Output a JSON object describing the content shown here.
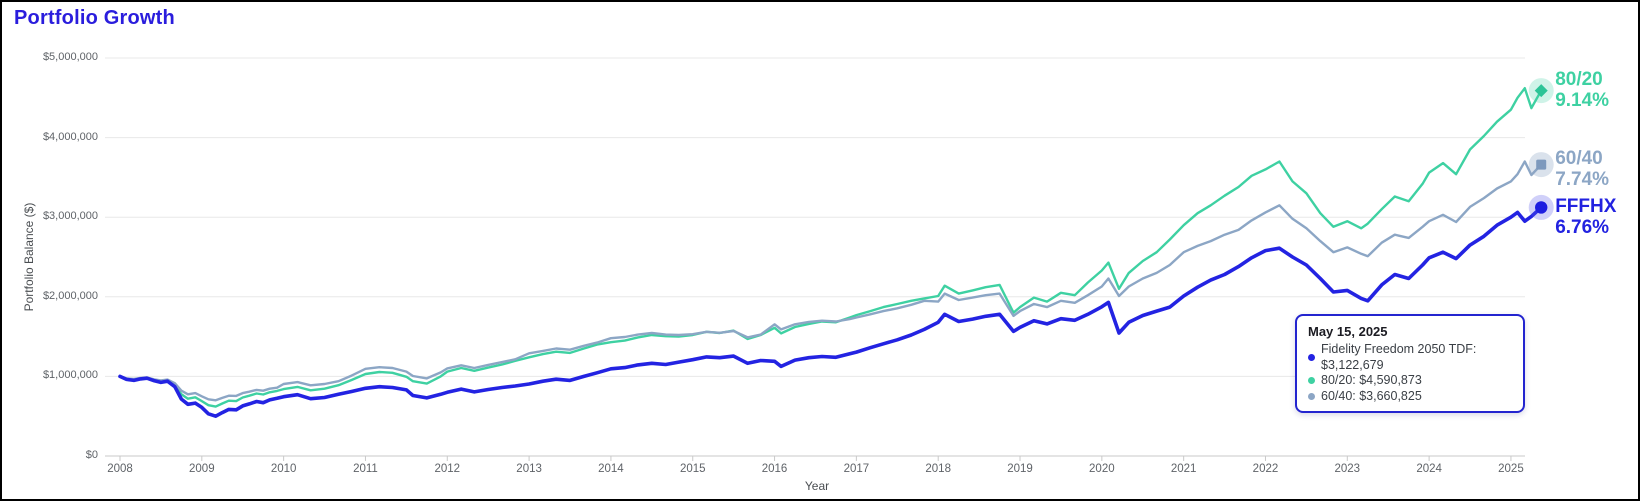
{
  "chart_data": {
    "type": "line",
    "title": "Portfolio Growth",
    "xlabel": "Year",
    "ylabel": "Portfolio Balance ($)",
    "grid": "horizontal",
    "legend_position": "right-end-labels",
    "ylim_dollars": [
      0,
      5000000
    ],
    "xlim_years": [
      2008,
      2025.37
    ],
    "x_ticks": [
      2008,
      2009,
      2010,
      2011,
      2012,
      2013,
      2014,
      2015,
      2016,
      2017,
      2018,
      2019,
      2020,
      2021,
      2022,
      2023,
      2024,
      2025
    ],
    "y_ticks": [
      {
        "value_millions": 0,
        "label": "$0"
      },
      {
        "value_millions": 1,
        "label": "$1,000,000"
      },
      {
        "value_millions": 2,
        "label": "$2,000,000"
      },
      {
        "value_millions": 3,
        "label": "$3,000,000"
      },
      {
        "value_millions": 4,
        "label": "$4,000,000"
      },
      {
        "value_millions": 5,
        "label": "$5,000,000"
      }
    ],
    "x": [
      2008.0,
      2008.08,
      2008.17,
      2008.25,
      2008.33,
      2008.42,
      2008.5,
      2008.58,
      2008.67,
      2008.75,
      2008.83,
      2008.92,
      2009.0,
      2009.08,
      2009.17,
      2009.25,
      2009.33,
      2009.42,
      2009.5,
      2009.58,
      2009.67,
      2009.75,
      2009.83,
      2009.92,
      2010.0,
      2010.17,
      2010.33,
      2010.5,
      2010.67,
      2010.83,
      2011.0,
      2011.17,
      2011.33,
      2011.5,
      2011.58,
      2011.75,
      2011.92,
      2012.0,
      2012.17,
      2012.33,
      2012.5,
      2012.67,
      2012.83,
      2013.0,
      2013.17,
      2013.33,
      2013.5,
      2013.67,
      2013.83,
      2014.0,
      2014.17,
      2014.33,
      2014.5,
      2014.67,
      2014.83,
      2015.0,
      2015.17,
      2015.33,
      2015.5,
      2015.67,
      2015.83,
      2016.0,
      2016.08,
      2016.25,
      2016.42,
      2016.58,
      2016.75,
      2016.92,
      2017.0,
      2017.17,
      2017.33,
      2017.5,
      2017.67,
      2017.83,
      2018.0,
      2018.08,
      2018.25,
      2018.42,
      2018.58,
      2018.75,
      2018.92,
      2019.0,
      2019.17,
      2019.33,
      2019.5,
      2019.67,
      2019.83,
      2020.0,
      2020.08,
      2020.21,
      2020.33,
      2020.5,
      2020.67,
      2020.83,
      2021.0,
      2021.17,
      2021.33,
      2021.5,
      2021.67,
      2021.83,
      2022.0,
      2022.17,
      2022.33,
      2022.5,
      2022.67,
      2022.83,
      2023.0,
      2023.17,
      2023.25,
      2023.42,
      2023.58,
      2023.75,
      2023.92,
      2024.0,
      2024.17,
      2024.33,
      2024.5,
      2024.67,
      2024.83,
      2025.0,
      2025.08,
      2025.17,
      2025.25,
      2025.37
    ],
    "series": [
      {
        "id": "p8020",
        "label": "80/20",
        "cagr_label": "9.14%",
        "end_value": "$4,590,873",
        "color": "#3ed1a2",
        "marker": "diamond",
        "marker_color": "#2cc497",
        "halo_color": "rgba(62,209,162,0.25)",
        "stroke_width": 2.4,
        "label_offset_y": 0,
        "values_millions": [
          1.0,
          0.968,
          0.958,
          0.974,
          0.982,
          0.952,
          0.938,
          0.95,
          0.895,
          0.775,
          0.72,
          0.738,
          0.69,
          0.638,
          0.62,
          0.66,
          0.695,
          0.69,
          0.735,
          0.758,
          0.785,
          0.772,
          0.8,
          0.818,
          0.84,
          0.868,
          0.825,
          0.845,
          0.89,
          0.955,
          1.03,
          1.055,
          1.045,
          0.995,
          0.94,
          0.91,
          1.0,
          1.06,
          1.105,
          1.07,
          1.11,
          1.15,
          1.195,
          1.24,
          1.28,
          1.31,
          1.295,
          1.35,
          1.4,
          1.43,
          1.45,
          1.49,
          1.52,
          1.505,
          1.5,
          1.52,
          1.56,
          1.545,
          1.575,
          1.47,
          1.52,
          1.61,
          1.54,
          1.62,
          1.66,
          1.69,
          1.68,
          1.74,
          1.77,
          1.82,
          1.87,
          1.91,
          1.95,
          1.98,
          2.01,
          2.14,
          2.04,
          2.08,
          2.12,
          2.15,
          1.8,
          1.87,
          1.99,
          1.94,
          2.05,
          2.02,
          2.18,
          2.33,
          2.43,
          2.1,
          2.3,
          2.45,
          2.56,
          2.72,
          2.9,
          3.05,
          3.15,
          3.27,
          3.38,
          3.52,
          3.6,
          3.7,
          3.45,
          3.3,
          3.05,
          2.88,
          2.95,
          2.86,
          2.92,
          3.1,
          3.26,
          3.2,
          3.42,
          3.56,
          3.68,
          3.54,
          3.85,
          4.02,
          4.2,
          4.35,
          4.5,
          4.62,
          4.37,
          4.5909
        ]
      },
      {
        "id": "p6040",
        "label": "60/40",
        "cagr_label": "7.74%",
        "end_value": "$3,660,825",
        "color": "#8ca6c5",
        "marker": "square",
        "marker_color": "#7d99bd",
        "halo_color": "rgba(140,166,197,0.32)",
        "stroke_width": 2.4,
        "label_offset_y": 5,
        "values_millions": [
          1.0,
          0.975,
          0.968,
          0.98,
          0.986,
          0.962,
          0.95,
          0.96,
          0.915,
          0.82,
          0.775,
          0.79,
          0.75,
          0.712,
          0.7,
          0.73,
          0.758,
          0.755,
          0.79,
          0.808,
          0.83,
          0.82,
          0.845,
          0.858,
          0.905,
          0.928,
          0.888,
          0.905,
          0.94,
          1.01,
          1.095,
          1.115,
          1.105,
          1.06,
          1.005,
          0.975,
          1.05,
          1.1,
          1.14,
          1.105,
          1.145,
          1.18,
          1.215,
          1.29,
          1.32,
          1.35,
          1.335,
          1.385,
          1.425,
          1.48,
          1.495,
          1.525,
          1.545,
          1.525,
          1.52,
          1.53,
          1.56,
          1.548,
          1.57,
          1.49,
          1.525,
          1.655,
          1.59,
          1.655,
          1.685,
          1.7,
          1.69,
          1.72,
          1.74,
          1.78,
          1.82,
          1.855,
          1.9,
          1.95,
          1.94,
          2.04,
          1.96,
          1.99,
          2.02,
          2.04,
          1.76,
          1.82,
          1.91,
          1.87,
          1.95,
          1.925,
          2.02,
          2.13,
          2.23,
          2.01,
          2.13,
          2.23,
          2.3,
          2.4,
          2.56,
          2.64,
          2.7,
          2.78,
          2.84,
          2.96,
          3.06,
          3.15,
          2.98,
          2.86,
          2.7,
          2.56,
          2.62,
          2.54,
          2.51,
          2.68,
          2.78,
          2.74,
          2.88,
          2.95,
          3.03,
          2.94,
          3.13,
          3.24,
          3.36,
          3.45,
          3.54,
          3.7,
          3.53,
          3.6608
        ]
      },
      {
        "id": "fffhx",
        "label": "FFFHX",
        "full_name": "Fidelity Freedom 2050 TDF",
        "cagr_label": "6.76%",
        "end_value": "$3,122,679",
        "color": "#2323e2",
        "marker": "circle",
        "marker_color": "#1d1de0",
        "halo_color": "rgba(85,85,235,0.28)",
        "stroke_width": 3.6,
        "label_offset_y": 11,
        "values_millions": [
          1.0,
          0.962,
          0.95,
          0.968,
          0.978,
          0.945,
          0.925,
          0.94,
          0.87,
          0.715,
          0.65,
          0.665,
          0.61,
          0.53,
          0.5,
          0.545,
          0.585,
          0.58,
          0.63,
          0.655,
          0.685,
          0.67,
          0.705,
          0.725,
          0.745,
          0.77,
          0.72,
          0.735,
          0.775,
          0.81,
          0.85,
          0.87,
          0.86,
          0.83,
          0.76,
          0.73,
          0.775,
          0.8,
          0.84,
          0.805,
          0.835,
          0.86,
          0.88,
          0.905,
          0.94,
          0.965,
          0.95,
          1.0,
          1.045,
          1.095,
          1.11,
          1.145,
          1.165,
          1.15,
          1.18,
          1.21,
          1.245,
          1.235,
          1.255,
          1.165,
          1.2,
          1.19,
          1.125,
          1.205,
          1.235,
          1.25,
          1.24,
          1.285,
          1.305,
          1.36,
          1.41,
          1.46,
          1.52,
          1.59,
          1.68,
          1.78,
          1.69,
          1.72,
          1.755,
          1.78,
          1.565,
          1.615,
          1.7,
          1.66,
          1.725,
          1.705,
          1.78,
          1.875,
          1.93,
          1.545,
          1.68,
          1.765,
          1.82,
          1.87,
          2.01,
          2.12,
          2.21,
          2.28,
          2.38,
          2.49,
          2.58,
          2.61,
          2.5,
          2.4,
          2.23,
          2.06,
          2.08,
          1.98,
          1.95,
          2.15,
          2.28,
          2.23,
          2.4,
          2.49,
          2.56,
          2.48,
          2.65,
          2.76,
          2.9,
          3.0,
          3.06,
          2.95,
          3.01,
          3.1227
        ]
      }
    ],
    "tooltip": {
      "title": "May 15, 2025",
      "items": [
        {
          "text": "Fidelity Freedom 2050 TDF: $3,122,679",
          "color": "#2323e2"
        },
        {
          "text": "80/20: $4,590,873",
          "color": "#3ed1a2"
        },
        {
          "text": "60/40: $3,660,825",
          "color": "#8ca6c5"
        }
      ]
    }
  }
}
